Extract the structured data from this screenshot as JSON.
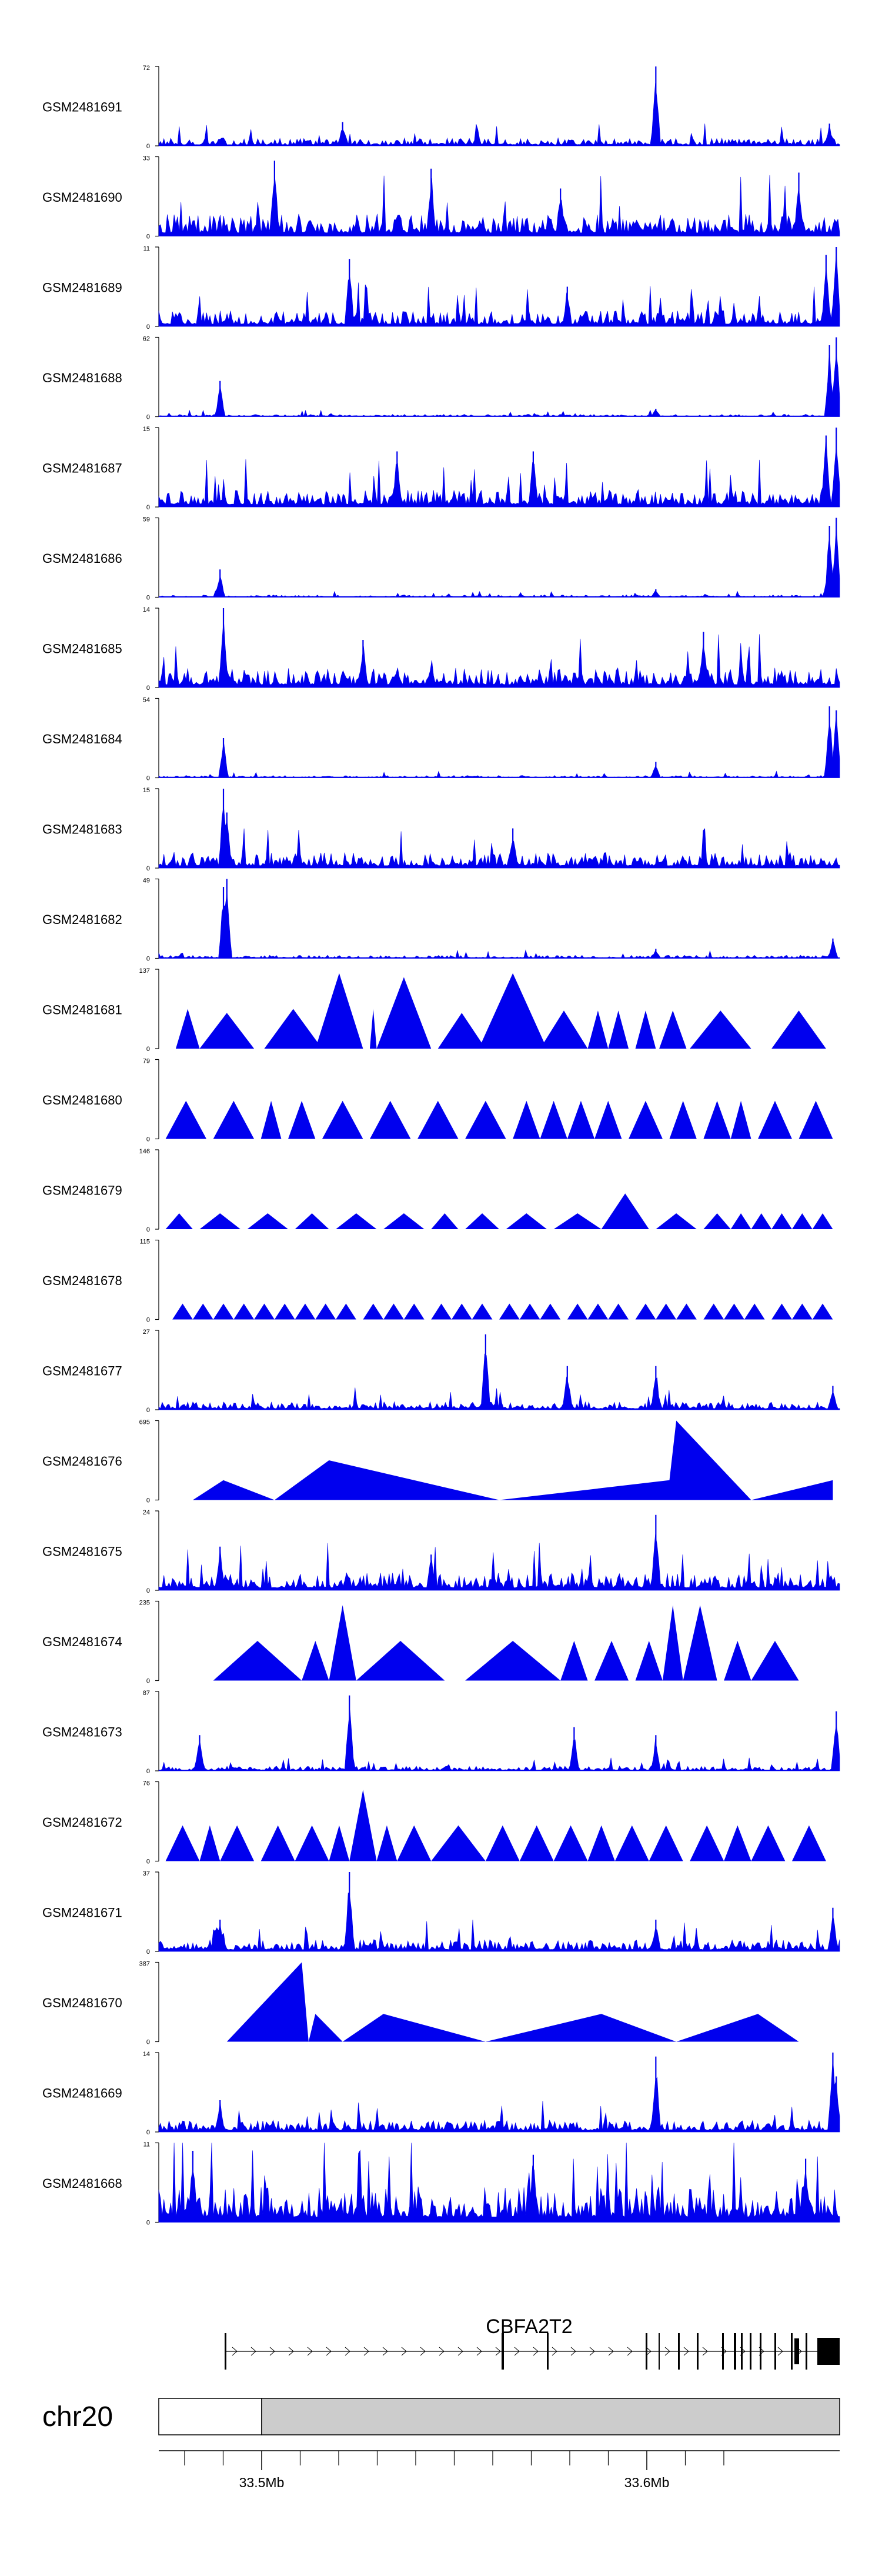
{
  "colors": {
    "signal": "#0000ee",
    "axis": "#000000",
    "ideogram_fill": "#cccccc",
    "gene": "#000000"
  },
  "chart_data": {
    "type": "area",
    "title": "",
    "region": {
      "chromosome": "chr20",
      "start_mb": 33.475,
      "end_mb": 33.65
    },
    "genomic_axis": {
      "tick_labels": [
        "33.5Mb",
        "33.6Mb"
      ],
      "tick_values_mb": [
        33.5,
        33.6
      ]
    },
    "gene": {
      "name": "CBFA2T2",
      "strand": "+",
      "icon": "gene-model-exons-introns"
    },
    "ideogram": {
      "label": "chr20"
    },
    "tracks": [
      {
        "name": "GSM2481691",
        "ymax": "72",
        "ymin": "0",
        "style": "dense",
        "baseline": 0.1,
        "peaks": [
          [
            0.27,
            0.3
          ],
          [
            0.73,
            1.0
          ],
          [
            0.985,
            0.28
          ]
        ]
      },
      {
        "name": "GSM2481690",
        "ymax": "33",
        "ymin": "0",
        "style": "dense",
        "baseline": 0.28,
        "peaks": [
          [
            0.17,
            0.95
          ],
          [
            0.4,
            0.85
          ],
          [
            0.59,
            0.6
          ],
          [
            0.94,
            0.8
          ]
        ]
      },
      {
        "name": "GSM2481689",
        "ymax": "11",
        "ymin": "0",
        "style": "dense",
        "baseline": 0.2,
        "peaks": [
          [
            0.28,
            0.85
          ],
          [
            0.6,
            0.5
          ],
          [
            0.98,
            0.9
          ],
          [
            0.995,
            1.0
          ]
        ]
      },
      {
        "name": "GSM2481688",
        "ymax": "62",
        "ymin": "0",
        "style": "dense",
        "baseline": 0.03,
        "peaks": [
          [
            0.09,
            0.45
          ],
          [
            0.73,
            0.1
          ],
          [
            0.985,
            0.9
          ],
          [
            0.995,
            1.0
          ]
        ]
      },
      {
        "name": "GSM2481687",
        "ymax": "15",
        "ymin": "0",
        "style": "dense",
        "baseline": 0.22,
        "peaks": [
          [
            0.35,
            0.7
          ],
          [
            0.55,
            0.7
          ],
          [
            0.98,
            0.9
          ],
          [
            0.995,
            1.0
          ]
        ]
      },
      {
        "name": "GSM2481686",
        "ymax": "59",
        "ymin": "0",
        "style": "dense",
        "baseline": 0.03,
        "peaks": [
          [
            0.09,
            0.35
          ],
          [
            0.73,
            0.1
          ],
          [
            0.985,
            0.9
          ],
          [
            0.995,
            1.0
          ]
        ]
      },
      {
        "name": "GSM2481685",
        "ymax": "14",
        "ymin": "0",
        "style": "dense",
        "baseline": 0.25,
        "peaks": [
          [
            0.095,
            1.0
          ],
          [
            0.3,
            0.6
          ],
          [
            0.8,
            0.7
          ]
        ]
      },
      {
        "name": "GSM2481684",
        "ymax": "54",
        "ymin": "0",
        "style": "dense",
        "baseline": 0.03,
        "peaks": [
          [
            0.095,
            0.5
          ],
          [
            0.73,
            0.2
          ],
          [
            0.985,
            0.9
          ],
          [
            0.995,
            0.85
          ]
        ]
      },
      {
        "name": "GSM2481683",
        "ymax": "15",
        "ymin": "0",
        "style": "dense",
        "baseline": 0.2,
        "peaks": [
          [
            0.095,
            1.0
          ],
          [
            0.1,
            0.7
          ],
          [
            0.52,
            0.5
          ]
        ]
      },
      {
        "name": "GSM2481682",
        "ymax": "49",
        "ymin": "0",
        "style": "dense",
        "baseline": 0.04,
        "peaks": [
          [
            0.095,
            0.9
          ],
          [
            0.1,
            1.0
          ],
          [
            0.73,
            0.12
          ],
          [
            0.99,
            0.25
          ]
        ]
      },
      {
        "name": "GSM2481681",
        "ymax": "137",
        "ymin": "0",
        "style": "triangles",
        "triangles": [
          [
            0.025,
            0.06,
            0.5
          ],
          [
            0.06,
            0.14,
            0.45
          ],
          [
            0.155,
            0.24,
            0.5
          ],
          [
            0.23,
            0.3,
            0.95
          ],
          [
            0.31,
            0.32,
            0.5
          ],
          [
            0.32,
            0.4,
            0.9
          ],
          [
            0.41,
            0.48,
            0.45
          ],
          [
            0.47,
            0.57,
            0.95
          ],
          [
            0.56,
            0.63,
            0.48
          ],
          [
            0.63,
            0.66,
            0.48
          ],
          [
            0.66,
            0.69,
            0.48
          ],
          [
            0.7,
            0.73,
            0.48
          ],
          [
            0.735,
            0.775,
            0.48
          ],
          [
            0.78,
            0.87,
            0.48
          ],
          [
            0.9,
            0.98,
            0.48
          ]
        ]
      },
      {
        "name": "GSM2481680",
        "ymax": "79",
        "ymin": "0",
        "style": "triangles",
        "triangles": [
          [
            0.01,
            0.07,
            0.48
          ],
          [
            0.08,
            0.14,
            0.48
          ],
          [
            0.15,
            0.18,
            0.48
          ],
          [
            0.19,
            0.23,
            0.48
          ],
          [
            0.24,
            0.3,
            0.48
          ],
          [
            0.31,
            0.37,
            0.48
          ],
          [
            0.38,
            0.44,
            0.48
          ],
          [
            0.45,
            0.51,
            0.48
          ],
          [
            0.52,
            0.56,
            0.48
          ],
          [
            0.56,
            0.6,
            0.48
          ],
          [
            0.6,
            0.64,
            0.48
          ],
          [
            0.64,
            0.68,
            0.48
          ],
          [
            0.69,
            0.74,
            0.48
          ],
          [
            0.75,
            0.79,
            0.48
          ],
          [
            0.8,
            0.84,
            0.48
          ],
          [
            0.84,
            0.87,
            0.48
          ],
          [
            0.88,
            0.93,
            0.48
          ],
          [
            0.94,
            0.99,
            0.48
          ]
        ]
      },
      {
        "name": "GSM2481679",
        "ymax": "146",
        "ymin": "0",
        "style": "triangles",
        "triangles": [
          [
            0.01,
            0.05,
            0.2
          ],
          [
            0.06,
            0.12,
            0.2
          ],
          [
            0.13,
            0.19,
            0.2
          ],
          [
            0.2,
            0.25,
            0.2
          ],
          [
            0.26,
            0.32,
            0.2
          ],
          [
            0.33,
            0.39,
            0.2
          ],
          [
            0.4,
            0.44,
            0.2
          ],
          [
            0.45,
            0.5,
            0.2
          ],
          [
            0.51,
            0.57,
            0.2
          ],
          [
            0.58,
            0.65,
            0.2
          ],
          [
            0.65,
            0.72,
            0.45
          ],
          [
            0.73,
            0.79,
            0.2
          ],
          [
            0.8,
            0.84,
            0.2
          ],
          [
            0.84,
            0.87,
            0.2
          ],
          [
            0.87,
            0.9,
            0.2
          ],
          [
            0.9,
            0.93,
            0.2
          ],
          [
            0.93,
            0.96,
            0.2
          ],
          [
            0.96,
            0.99,
            0.2
          ]
        ]
      },
      {
        "name": "GSM2481678",
        "ymax": "115",
        "ymin": "0",
        "style": "triangles",
        "triangles": [
          [
            0.02,
            0.05,
            0.2
          ],
          [
            0.05,
            0.08,
            0.2
          ],
          [
            0.08,
            0.11,
            0.2
          ],
          [
            0.11,
            0.14,
            0.2
          ],
          [
            0.14,
            0.17,
            0.2
          ],
          [
            0.17,
            0.2,
            0.2
          ],
          [
            0.2,
            0.23,
            0.2
          ],
          [
            0.23,
            0.26,
            0.2
          ],
          [
            0.26,
            0.29,
            0.2
          ],
          [
            0.3,
            0.33,
            0.2
          ],
          [
            0.33,
            0.36,
            0.2
          ],
          [
            0.36,
            0.39,
            0.2
          ],
          [
            0.4,
            0.43,
            0.2
          ],
          [
            0.43,
            0.46,
            0.2
          ],
          [
            0.46,
            0.49,
            0.2
          ],
          [
            0.5,
            0.53,
            0.2
          ],
          [
            0.53,
            0.56,
            0.2
          ],
          [
            0.56,
            0.59,
            0.2
          ],
          [
            0.6,
            0.63,
            0.2
          ],
          [
            0.63,
            0.66,
            0.2
          ],
          [
            0.66,
            0.69,
            0.2
          ],
          [
            0.7,
            0.73,
            0.2
          ],
          [
            0.73,
            0.76,
            0.2
          ],
          [
            0.76,
            0.79,
            0.2
          ],
          [
            0.8,
            0.83,
            0.2
          ],
          [
            0.83,
            0.86,
            0.2
          ],
          [
            0.86,
            0.89,
            0.2
          ],
          [
            0.9,
            0.93,
            0.2
          ],
          [
            0.93,
            0.96,
            0.2
          ],
          [
            0.96,
            0.99,
            0.2
          ]
        ]
      },
      {
        "name": "GSM2481677",
        "ymax": "27",
        "ymin": "0",
        "style": "dense",
        "baseline": 0.1,
        "peaks": [
          [
            0.48,
            0.95
          ],
          [
            0.6,
            0.55
          ],
          [
            0.73,
            0.55
          ],
          [
            0.99,
            0.3
          ]
        ]
      },
      {
        "name": "GSM2481676",
        "ymax": "695",
        "ymin": "0",
        "style": "polygon",
        "points": [
          [
            0.05,
            0
          ],
          [
            0.095,
            0.25
          ],
          [
            0.17,
            0
          ],
          [
            0.25,
            0.5
          ],
          [
            0.5,
            0
          ],
          [
            0.75,
            0.25
          ],
          [
            0.76,
            1.0
          ],
          [
            0.87,
            0
          ],
          [
            0.99,
            0.25
          ],
          [
            0.99,
            0
          ]
        ]
      },
      {
        "name": "GSM2481675",
        "ymax": "24",
        "ymin": "0",
        "style": "dense",
        "baseline": 0.22,
        "peaks": [
          [
            0.09,
            0.55
          ],
          [
            0.73,
            0.95
          ],
          [
            0.4,
            0.45
          ]
        ]
      },
      {
        "name": "GSM2481674",
        "ymax": "235",
        "ymin": "0",
        "style": "triangles",
        "triangles": [
          [
            0.08,
            0.21,
            0.5
          ],
          [
            0.21,
            0.25,
            0.5
          ],
          [
            0.25,
            0.29,
            0.95
          ],
          [
            0.29,
            0.42,
            0.5
          ],
          [
            0.45,
            0.59,
            0.5
          ],
          [
            0.59,
            0.63,
            0.5
          ],
          [
            0.64,
            0.69,
            0.5
          ],
          [
            0.7,
            0.74,
            0.5
          ],
          [
            0.74,
            0.77,
            0.95
          ],
          [
            0.77,
            0.82,
            0.95
          ],
          [
            0.83,
            0.87,
            0.5
          ],
          [
            0.87,
            0.94,
            0.5
          ]
        ]
      },
      {
        "name": "GSM2481673",
        "ymax": "87",
        "ymin": "0",
        "style": "dense",
        "baseline": 0.06,
        "peaks": [
          [
            0.28,
            0.95
          ],
          [
            0.06,
            0.45
          ],
          [
            0.61,
            0.55
          ],
          [
            0.73,
            0.45
          ],
          [
            0.995,
            0.75
          ]
        ]
      },
      {
        "name": "GSM2481672",
        "ymax": "76",
        "ymin": "0",
        "style": "triangles",
        "triangles": [
          [
            0.01,
            0.06,
            0.45
          ],
          [
            0.06,
            0.09,
            0.45
          ],
          [
            0.09,
            0.14,
            0.45
          ],
          [
            0.15,
            0.2,
            0.45
          ],
          [
            0.2,
            0.25,
            0.45
          ],
          [
            0.25,
            0.28,
            0.45
          ],
          [
            0.28,
            0.32,
            0.9
          ],
          [
            0.32,
            0.35,
            0.45
          ],
          [
            0.35,
            0.4,
            0.45
          ],
          [
            0.4,
            0.48,
            0.45
          ],
          [
            0.48,
            0.53,
            0.45
          ],
          [
            0.53,
            0.58,
            0.45
          ],
          [
            0.58,
            0.63,
            0.45
          ],
          [
            0.63,
            0.67,
            0.45
          ],
          [
            0.67,
            0.72,
            0.45
          ],
          [
            0.72,
            0.77,
            0.45
          ],
          [
            0.78,
            0.83,
            0.45
          ],
          [
            0.83,
            0.87,
            0.45
          ],
          [
            0.87,
            0.92,
            0.45
          ],
          [
            0.93,
            0.98,
            0.45
          ]
        ]
      },
      {
        "name": "GSM2481671",
        "ymax": "37",
        "ymin": "0",
        "style": "dense",
        "baseline": 0.15,
        "peaks": [
          [
            0.28,
            1.0
          ],
          [
            0.09,
            0.4
          ],
          [
            0.73,
            0.4
          ],
          [
            0.99,
            0.55
          ]
        ]
      },
      {
        "name": "GSM2481670",
        "ymax": "387",
        "ymin": "0",
        "style": "polygon",
        "points": [
          [
            0.1,
            0
          ],
          [
            0.21,
            1.0
          ],
          [
            0.22,
            0
          ],
          [
            0.23,
            0.35
          ],
          [
            0.27,
            0
          ],
          [
            0.33,
            0.35
          ],
          [
            0.48,
            0
          ],
          [
            0.65,
            0.35
          ],
          [
            0.76,
            0
          ],
          [
            0.88,
            0.35
          ],
          [
            0.94,
            0
          ]
        ]
      },
      {
        "name": "GSM2481669",
        "ymax": "14",
        "ymin": "0",
        "style": "dense",
        "baseline": 0.15,
        "peaks": [
          [
            0.09,
            0.4
          ],
          [
            0.73,
            0.95
          ],
          [
            0.99,
            1.0
          ],
          [
            0.995,
            0.7
          ]
        ]
      },
      {
        "name": "GSM2481668",
        "ymax": "11",
        "ymin": "0",
        "style": "dense",
        "baseline": 0.45,
        "peaks": [
          [
            0.05,
            0.9
          ],
          [
            0.55,
            0.85
          ],
          [
            0.95,
            0.8
          ]
        ]
      }
    ]
  }
}
